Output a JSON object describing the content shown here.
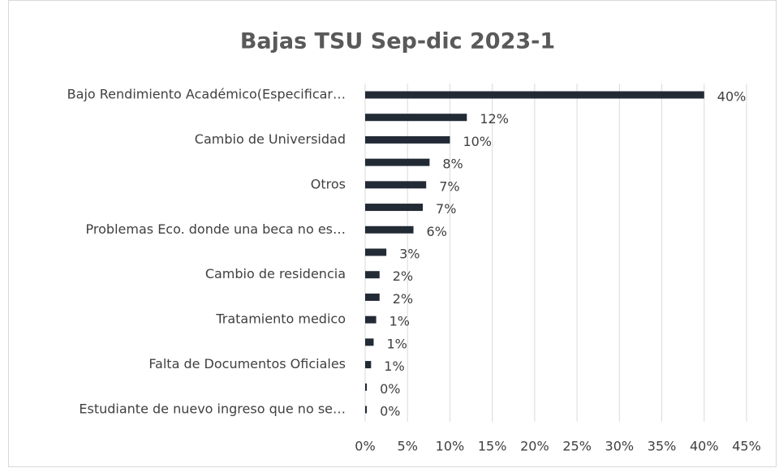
{
  "chart_data": {
    "type": "barh",
    "title": "Bajas TSU Sep-dic 2023-1",
    "categories": [
      "Bajo Rendimiento Académico(Especificar…",
      null,
      "Cambio de Universidad",
      null,
      "Otros",
      null,
      "Problemas Eco. donde una beca no es…",
      null,
      "Cambio de residencia",
      null,
      "Tratamiento medico",
      null,
      "Falta de Documentos Oficiales",
      null,
      "Estudiante de nuevo ingreso que no se…"
    ],
    "values": [
      40,
      12,
      10,
      7.6,
      7.2,
      6.8,
      5.7,
      2.5,
      1.7,
      1.7,
      1.3,
      1,
      0.7,
      0.2,
      0.2
    ],
    "value_labels": [
      "40%",
      "12%",
      "10%",
      "8%",
      "7%",
      "7%",
      "6%",
      "3%",
      "2%",
      "2%",
      "1%",
      "1%",
      "1%",
      "0%",
      "0%"
    ],
    "color": "#222a36",
    "xlim": [
      0,
      45
    ],
    "xticks": [
      {
        "value": 0,
        "label": "0%"
      },
      {
        "value": 5,
        "label": "5%"
      },
      {
        "value": 10,
        "label": "10%"
      },
      {
        "value": 15,
        "label": "15%"
      },
      {
        "value": 20,
        "label": "20%"
      },
      {
        "value": 25,
        "label": "25%"
      },
      {
        "value": 30,
        "label": "30%"
      },
      {
        "value": 35,
        "label": "35%"
      },
      {
        "value": 40,
        "label": "40%"
      },
      {
        "value": 45,
        "label": "45%"
      }
    ],
    "grid": true
  }
}
